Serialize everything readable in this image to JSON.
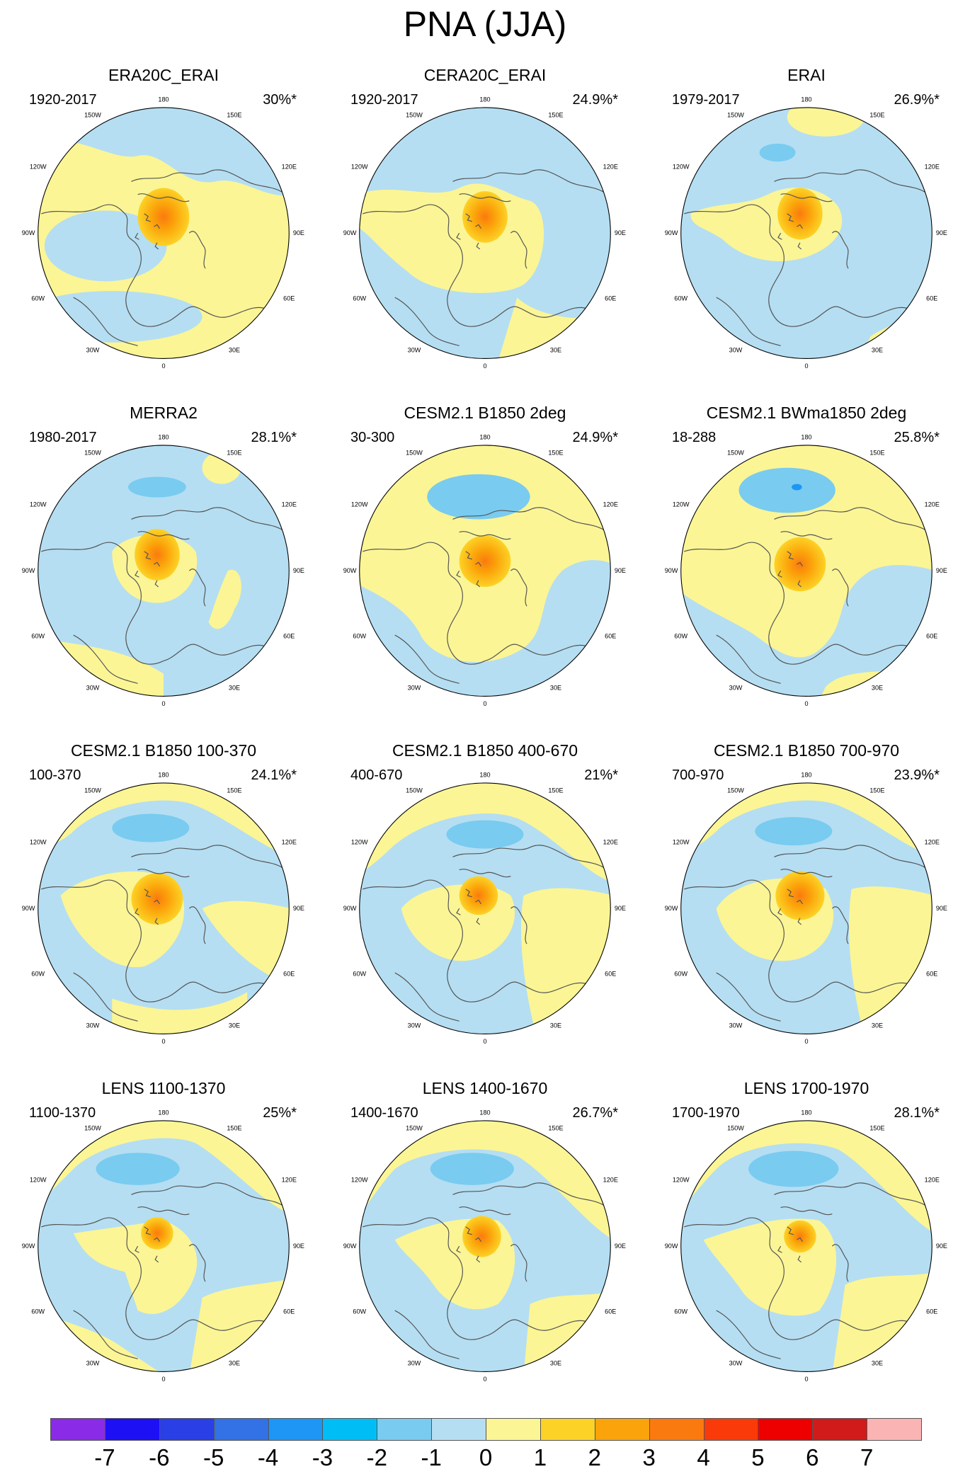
{
  "title": "PNA (JJA)",
  "longitude_labels": {
    "lon_180": "180",
    "lon_150W": "150W",
    "lon_150E": "150E",
    "lon_120W": "120W",
    "lon_120E": "120E",
    "lon_90W": "90W",
    "lon_90E": "90E",
    "lon_60W": "60W",
    "lon_60E": "60E",
    "lon_30W": "30W",
    "lon_30E": "30E",
    "lon_0": "0"
  },
  "panels": [
    {
      "title": "ERA20C_ERAI",
      "range": "1920-2017",
      "percent": "30%*"
    },
    {
      "title": "CERA20C_ERAI",
      "range": "1920-2017",
      "percent": "24.9%*"
    },
    {
      "title": "ERAI",
      "range": "1979-2017",
      "percent": "26.9%*"
    },
    {
      "title": "MERRA2",
      "range": "1980-2017",
      "percent": "28.1%*"
    },
    {
      "title": "CESM2.1 B1850 2deg",
      "range": "30-300",
      "percent": "24.9%*"
    },
    {
      "title": "CESM2.1 BWma1850 2deg",
      "range": "18-288",
      "percent": "25.8%*"
    },
    {
      "title": "CESM2.1 B1850 100-370",
      "range": "100-370",
      "percent": "24.1%*"
    },
    {
      "title": "CESM2.1 B1850 400-670",
      "range": "400-670",
      "percent": "21%*"
    },
    {
      "title": "CESM2.1 B1850 700-970",
      "range": "700-970",
      "percent": "23.9%*"
    },
    {
      "title": "LENS 1100-1370",
      "range": "1100-1370",
      "percent": "25%*"
    },
    {
      "title": "LENS 1400-1670",
      "range": "1400-1670",
      "percent": "26.7%*"
    },
    {
      "title": "LENS 1700-1970",
      "range": "1700-1970",
      "percent": "28.1%*"
    }
  ],
  "colorbar": {
    "colors": [
      "#8a2be8",
      "#1e10f5",
      "#2b3fe6",
      "#3271e6",
      "#1e96f5",
      "#00bef5",
      "#79cbf0",
      "#b5def2",
      "#fbf595",
      "#fdd226",
      "#fba30a",
      "#fb7a0f",
      "#fb3a0a",
      "#ee0000",
      "#d11b1b",
      "#fbb4b4"
    ],
    "labels": [
      "-7",
      "-6",
      "-5",
      "-4",
      "-3",
      "-2",
      "-1",
      "0",
      "1",
      "2",
      "3",
      "4",
      "5",
      "6",
      "7"
    ]
  }
}
